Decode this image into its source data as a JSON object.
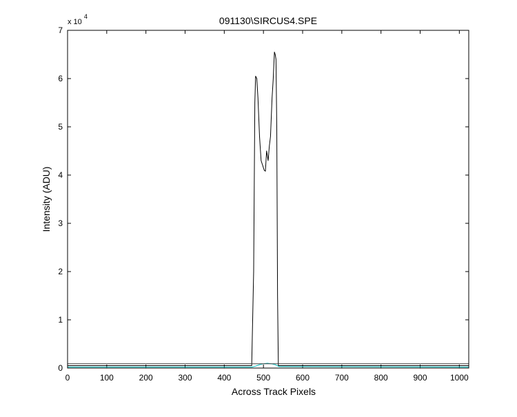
{
  "chart_data": {
    "type": "line",
    "title": "091130\\SIRCUS4.SPE",
    "xlabel": "Across Track Pixels",
    "ylabel": "Intensity (ADU)",
    "y_multiplier_label": {
      "base": "x 10",
      "exponent": "4"
    },
    "xlim": [
      0,
      1024
    ],
    "ylim": [
      0,
      70000
    ],
    "x_ticks": [
      "0",
      "100",
      "200",
      "300",
      "400",
      "500",
      "600",
      "700",
      "800",
      "900",
      "1000"
    ],
    "y_ticks": [
      "0",
      "1",
      "2",
      "3",
      "4",
      "5",
      "6",
      "7"
    ],
    "grid": false,
    "series": [
      {
        "color": "#000000",
        "x": [
          0,
          470,
          475,
          478,
          480,
          483,
          486,
          490,
          494,
          498,
          502,
          505,
          508,
          510,
          512,
          515,
          518,
          522,
          525,
          528,
          530,
          532,
          534,
          536,
          538,
          540,
          1024
        ],
        "y": [
          500,
          500,
          20000,
          55000,
          60500,
          60000,
          56000,
          48000,
          43000,
          42000,
          41000,
          40800,
          45000,
          44000,
          43000,
          46000,
          48000,
          56000,
          60000,
          65500,
          65000,
          64000,
          50000,
          15000,
          500,
          500,
          500
        ]
      },
      {
        "color": "#00c0c0",
        "x": [
          0,
          470,
          480,
          490,
          500,
          510,
          520,
          530,
          540,
          1024
        ],
        "y": [
          200,
          200,
          400,
          700,
          900,
          1000,
          900,
          700,
          300,
          200
        ]
      },
      {
        "color": "#404040",
        "x": [
          0,
          1024
        ],
        "y": [
          900,
          900
        ]
      }
    ]
  }
}
